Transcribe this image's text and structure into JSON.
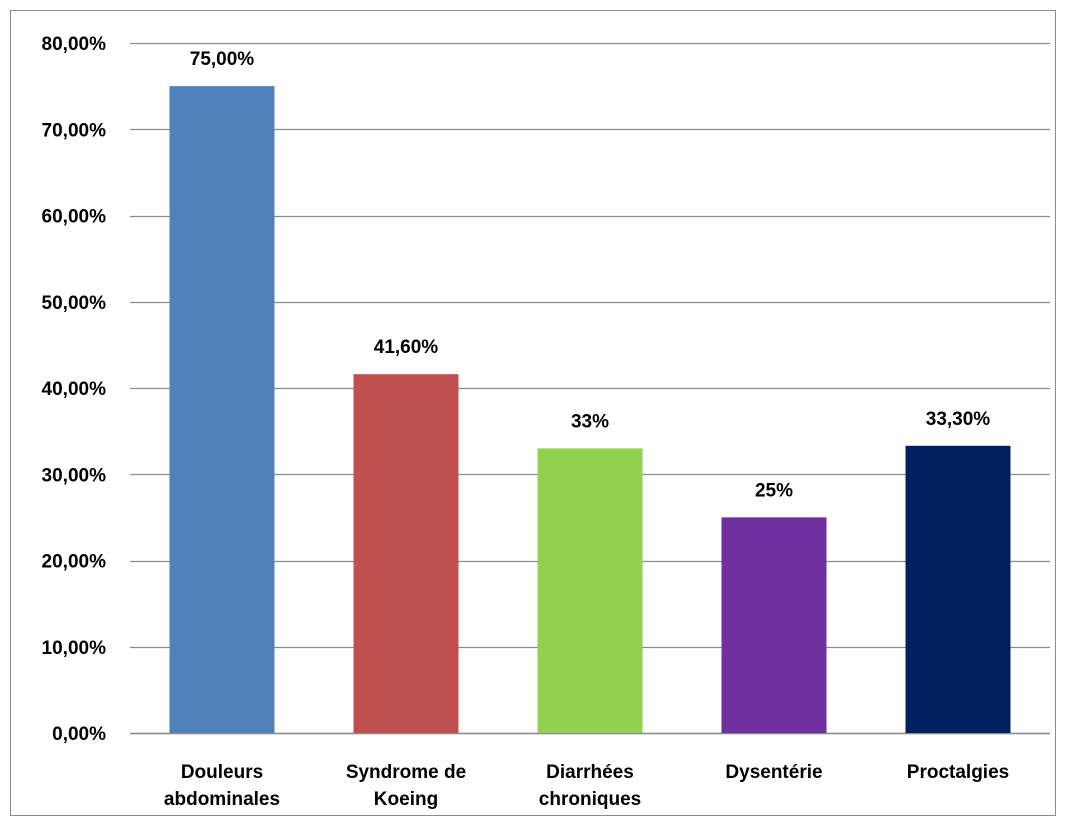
{
  "chart_data": {
    "type": "bar",
    "categories": [
      [
        "Douleurs",
        "abdominales"
      ],
      [
        "Syndrome de",
        "Koeing"
      ],
      [
        "Diarrhées",
        "chroniques"
      ],
      [
        "Dysentérie"
      ],
      [
        "Proctalgies"
      ]
    ],
    "values": [
      75.0,
      41.6,
      33.0,
      25.0,
      33.3
    ],
    "data_labels": [
      "75,00%",
      "41,60%",
      "33%",
      "25%",
      "33,30%"
    ],
    "colors": [
      "#4f81bd",
      "#c0504d",
      "#92d050",
      "#7030a0",
      "#002060"
    ],
    "ylim": [
      0,
      80
    ],
    "yticks": [
      "0,00%",
      "10,00%",
      "20,00%",
      "30,00%",
      "40,00%",
      "50,00%",
      "60,00%",
      "70,00%",
      "80,00%"
    ],
    "grid": true,
    "gridline_color": "#8c8c8c",
    "title": "",
    "xlabel": "",
    "ylabel": ""
  }
}
